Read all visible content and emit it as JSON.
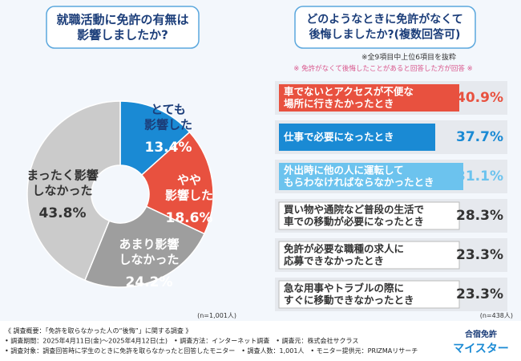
{
  "chart_data": [
    {
      "type": "donut",
      "title": "就職活動に免許の有無は\n影響しましたか?",
      "categories": [
        "とても\n影響した",
        "やや\n影響した",
        "あまり影響\nしなかった",
        "まったく影響\nしなかった"
      ],
      "values": [
        13.4,
        18.6,
        24.2,
        43.8
      ],
      "value_labels": [
        "13.4%",
        "18.6%",
        "24.2%",
        "43.8%"
      ],
      "colors": [
        "#1a8ad4",
        "#e8513f",
        "#9e9e9e",
        "#cbcbcb"
      ],
      "note": "(n=1,001人)"
    },
    {
      "type": "ranked-list",
      "title": "どのようなときに免許がなくて\n後悔しましたか?(複数回答可)",
      "subtitle": "※全9項目中上位6項目を抜粋",
      "subtitle2": "※ 免許がなくて後悔したことがあると回答した方が回答 ※",
      "categories": [
        "車でないとアクセスが不便な\n場所に行きたかったとき",
        "仕事で必要になったとき",
        "外出時に他の人に運転して\nもらわなければならなかったとき",
        "買い物や通院など普段の生活で\n車での移動が必要になったとき",
        "免許が必要な職種の求人に\n応募できなかったとき",
        "急な用事やトラブルの際に\nすぐに移動できなかったとき"
      ],
      "values": [
        40.9,
        37.7,
        31.1,
        28.3,
        23.3,
        23.3
      ],
      "value_labels": [
        "40.9%",
        "37.7%",
        "31.1%",
        "28.3%",
        "23.3%",
        "23.3%"
      ],
      "colors": [
        "#e8513f",
        "#1a8ad4",
        "#6cc3ee",
        "#ffffff",
        "#ffffff",
        "#ffffff"
      ],
      "note": "(n=438人)"
    }
  ],
  "footer": {
    "lines": [
      "《 調査概要：「免許を取らなかった人の“後悔”」に関する調査 》",
      "• 調査期間：2025年4月11日(金)～2025年4月12日(土)　• 調査方法：インターネット調査　• 調査元：株式会社サクラス",
      "• 調査対象：調査回答時に学生のときに免許を取らなかったと回答したモニター　• 調査人数：1,001人　• モニター提供元：PRIZMAリサーチ"
    ]
  },
  "logo": {
    "top": "合宿免許",
    "bottom": "マイスター"
  }
}
